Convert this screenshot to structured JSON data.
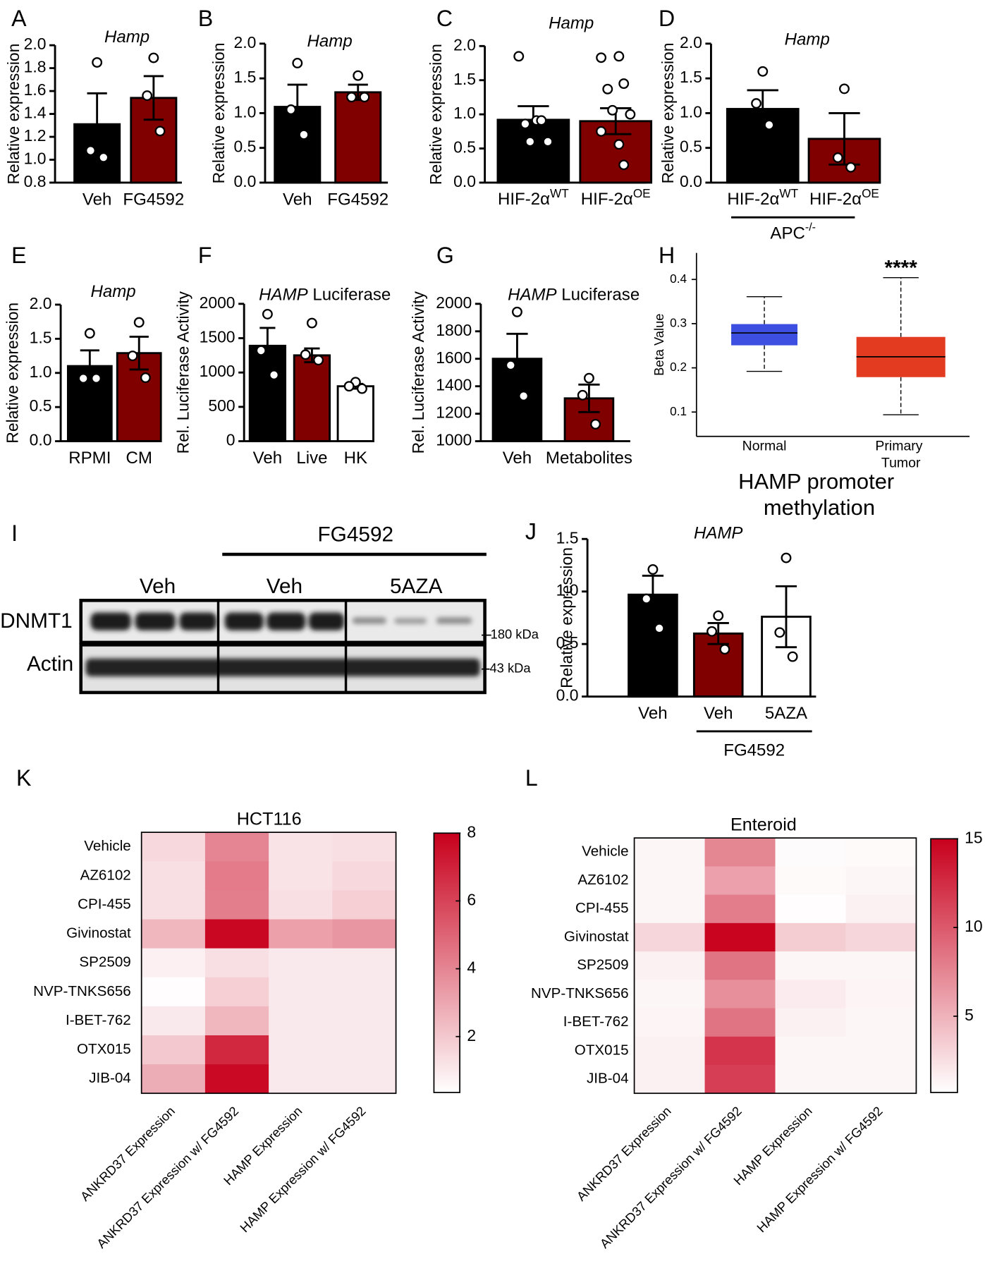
{
  "chart_data": [
    {
      "type": "bar",
      "panel": "A",
      "title": "Hamp",
      "ylabel": "Relative expression",
      "categories": [
        "Veh",
        "FG4592"
      ],
      "values": [
        1.31,
        1.54
      ],
      "errors": [
        0.27,
        0.19
      ],
      "points": [
        [
          1.85,
          1.08,
          1.02
        ],
        [
          1.89,
          1.56,
          1.25
        ]
      ],
      "colors": [
        "#000000",
        "#800000"
      ],
      "ylim": [
        0.8,
        2.0
      ],
      "yticks": [
        0.8,
        {
          "value": 1.0,
          "label": "1.0"
        },
        1.2,
        1.4,
        1.6,
        1.8,
        {
          "value": 2.0,
          "label": "2.0"
        }
      ]
    },
    {
      "type": "bar",
      "panel": "B",
      "title": "Hamp",
      "ylabel": "Relative expression",
      "categories": [
        "Veh",
        "FG4592"
      ],
      "values": [
        1.09,
        1.3
      ],
      "errors": [
        0.32,
        0.11
      ],
      "points": [
        [
          1.72,
          1.05,
          0.69
        ],
        [
          1.54,
          1.23,
          1.23
        ]
      ],
      "colors": [
        "#000000",
        "#800000"
      ],
      "ylim": [
        0,
        2.0
      ],
      "yticks": [
        {
          "value": 0,
          "label": "0.0"
        },
        0.5,
        {
          "value": 1.0,
          "label": "1.0"
        },
        1.5,
        {
          "value": 2.0,
          "label": "2.0"
        }
      ]
    },
    {
      "type": "bar",
      "panel": "C",
      "title": "Hamp",
      "ylabel": "Relative expression",
      "categories": [
        "HIF-2α",
        "HIF-2α"
      ],
      "category_superscripts": [
        "WT",
        "OE"
      ],
      "values": [
        0.92,
        0.9
      ],
      "errors": [
        0.2,
        0.19
      ],
      "points": [
        [
          1.85,
          0.91,
          0.91,
          0.86,
          0.6,
          0.6
        ],
        [
          1.83,
          1.85,
          1.45,
          1.37,
          1.06,
          1.0,
          0.75,
          0.56,
          0.26
        ]
      ],
      "colors": [
        "#000000",
        "#800000"
      ],
      "ylim": [
        0,
        2.0
      ],
      "yticks": [
        {
          "value": 0,
          "label": "0.0"
        },
        0.5,
        {
          "value": 1.0,
          "label": "1.0"
        },
        1.5,
        {
          "value": 2.0,
          "label": "2.0"
        }
      ]
    },
    {
      "type": "bar",
      "panel": "D",
      "title": "Hamp",
      "ylabel": "Relative expression",
      "categories": [
        "HIF-2α",
        "HIF-2α"
      ],
      "category_superscripts": [
        "WT",
        "OE"
      ],
      "values": [
        1.06,
        0.63
      ],
      "errors": [
        0.27,
        0.37
      ],
      "points": [
        [
          1.6,
          1.14,
          0.83
        ],
        [
          1.35,
          0.36,
          0.22
        ]
      ],
      "colors": [
        "#000000",
        "#800000"
      ],
      "group_label": "APC",
      "group_label_sup": "-/-",
      "ylim": [
        0,
        2.0
      ],
      "yticks": [
        {
          "value": 0,
          "label": "0.0"
        },
        0.5,
        {
          "value": 1.0,
          "label": "1.0"
        },
        1.5,
        {
          "value": 2.0,
          "label": "2.0"
        }
      ]
    },
    {
      "type": "bar",
      "panel": "E",
      "title": "Hamp",
      "ylabel": "Relative expression",
      "categories": [
        "RPMI",
        "CM"
      ],
      "values": [
        1.1,
        1.29
      ],
      "errors": [
        0.23,
        0.24
      ],
      "points": [
        [
          1.58,
          0.92,
          0.92
        ],
        [
          1.74,
          1.25,
          0.93
        ]
      ],
      "colors": [
        "#000000",
        "#800000"
      ],
      "ylim": [
        0,
        2.0
      ],
      "yticks": [
        {
          "value": 0,
          "label": "0.0"
        },
        0.5,
        {
          "value": 1.0,
          "label": "1.0"
        },
        1.5,
        {
          "value": 2.0,
          "label": "2.0"
        }
      ]
    },
    {
      "type": "bar",
      "panel": "F",
      "title": "HAMP",
      "title_rest": "Luciferase",
      "ylabel": "Rel. Luciferase Activity",
      "categories": [
        "Veh",
        "Live",
        "HK"
      ],
      "values": [
        1389,
        1250,
        800
      ],
      "errors": [
        260,
        100,
        35
      ],
      "points": [
        [
          1850,
          1320,
          965
        ],
        [
          1720,
          1260,
          1180
        ],
        [
          860,
          800,
          765
        ]
      ],
      "colors": [
        "#000000",
        "#800000",
        "#ffffff"
      ],
      "ylim": [
        0,
        2000
      ],
      "yticks": [
        0,
        500,
        1000,
        1500,
        2000
      ]
    },
    {
      "type": "bar",
      "panel": "G",
      "title": "HAMP",
      "title_rest": "Luciferase",
      "ylabel": "Rel. Luciferase Activity",
      "categories": [
        "Veh",
        "Metabolites"
      ],
      "values": [
        1600,
        1312
      ],
      "errors": [
        182,
        100
      ],
      "points": [
        [
          1941,
          1553,
          1329
        ],
        [
          1459,
          1335,
          1124
        ]
      ],
      "colors": [
        "#000000",
        "#800000"
      ],
      "ylim": [
        1000,
        2000
      ],
      "yticks": [
        1000,
        1200,
        1400,
        1600,
        1800,
        2000
      ]
    },
    {
      "type": "box",
      "panel": "H",
      "title": "HAMP promoter methylation",
      "ylabel": "Beta Value",
      "categories": [
        "Normal",
        "Primary Tumor"
      ],
      "min": [
        0.192,
        0.094
      ],
      "q1": [
        0.251,
        0.179
      ],
      "median": [
        0.279,
        0.225
      ],
      "q3": [
        0.299,
        0.27
      ],
      "max": [
        0.361,
        0.404
      ],
      "colors": [
        "#3c4fe0",
        "#e23b20"
      ],
      "annotation": "****",
      "ylim": [
        0.045,
        0.46
      ],
      "yticks": [
        0.1,
        0.2,
        0.3,
        0.4
      ]
    },
    {
      "type": "bar",
      "panel": "J",
      "title": "HAMP",
      "ylabel": "Relative expression",
      "categories": [
        "Veh",
        "Veh",
        "5AZA"
      ],
      "values": [
        0.97,
        0.6,
        0.76
      ],
      "errors": [
        0.18,
        0.1,
        0.29
      ],
      "points": [
        [
          1.21,
          0.93,
          0.65
        ],
        [
          0.77,
          0.62,
          0.45
        ],
        [
          1.32,
          0.61,
          0.38
        ]
      ],
      "colors": [
        "#000000",
        "#800000",
        "#ffffff"
      ],
      "group_label": "FG4592",
      "ylim": [
        0,
        1.5
      ],
      "yticks": [
        {
          "value": 0,
          "label": "0.0"
        },
        0.5,
        {
          "value": 1.0,
          "label": "1.0"
        },
        1.5
      ]
    },
    {
      "type": "heatmap",
      "panel": "K",
      "title": "HCT116",
      "rows": [
        "Vehicle",
        "AZ6102",
        "CPI-455",
        "Givinostat",
        "SP2509",
        "NVP-TNKS656",
        "I-BET-762",
        "OTX015",
        "JIB-04"
      ],
      "columns": [
        "ANKRD37 Expression",
        "ANKRD37 Expression w/ FG4592",
        "HAMP Expression",
        "HAMP Expression w/ FG4592"
      ],
      "values": [
        [
          1.5,
          4.0,
          1.2,
          1.3
        ],
        [
          1.3,
          4.3,
          1.2,
          1.5
        ],
        [
          1.3,
          4.2,
          1.3,
          1.8
        ],
        [
          2.5,
          7.8,
          3.2,
          3.5
        ],
        [
          0.8,
          1.3,
          1.0,
          1.0
        ],
        [
          0.4,
          1.8,
          1.0,
          1.0
        ],
        [
          1.0,
          2.5,
          1.0,
          1.0
        ],
        [
          2.0,
          6.8,
          1.0,
          1.0
        ],
        [
          2.8,
          7.7,
          1.0,
          1.0
        ]
      ],
      "colormap": [
        "#ffffff",
        "#c8001c"
      ],
      "zlim": [
        0.35,
        8
      ],
      "zticks": [
        2,
        4,
        6,
        8
      ]
    },
    {
      "type": "heatmap",
      "panel": "L",
      "title": "Enteroid",
      "rows": [
        "Vehicle",
        "AZ6102",
        "CPI-455",
        "Givinostat",
        "SP2509",
        "NVP-TNKS656",
        "I-BET-762",
        "OTX015",
        "JIB-04"
      ],
      "columns": [
        "ANKRD37 Expression",
        "ANKRD37 Expression w/ FG4592",
        "HAMP Expression",
        "HAMP Expression w/ FG4592"
      ],
      "values": [
        [
          1.2,
          7.5,
          0.9,
          1.0
        ],
        [
          1.2,
          6.0,
          1.0,
          1.2
        ],
        [
          1.2,
          8.0,
          0.8,
          1.5
        ],
        [
          3.0,
          14.8,
          3.5,
          3.0
        ],
        [
          1.5,
          8.5,
          1.2,
          1.2
        ],
        [
          1.2,
          7.0,
          1.8,
          1.3
        ],
        [
          1.3,
          8.5,
          1.5,
          1.2
        ],
        [
          1.5,
          12.0,
          1.2,
          1.2
        ],
        [
          1.5,
          11.5,
          1.2,
          1.2
        ]
      ],
      "colormap": [
        "#ffffff",
        "#c8001c"
      ],
      "zlim": [
        0.7,
        15
      ],
      "zticks": [
        5,
        10,
        15
      ]
    }
  ],
  "blot": {
    "panel": "I",
    "treatment": "FG4592",
    "lane_groups": [
      "Veh",
      "Veh",
      "5AZA"
    ],
    "rows": [
      "DNMT1",
      "Actin"
    ],
    "markers": [
      "180 kDa",
      "43 kDa"
    ]
  }
}
